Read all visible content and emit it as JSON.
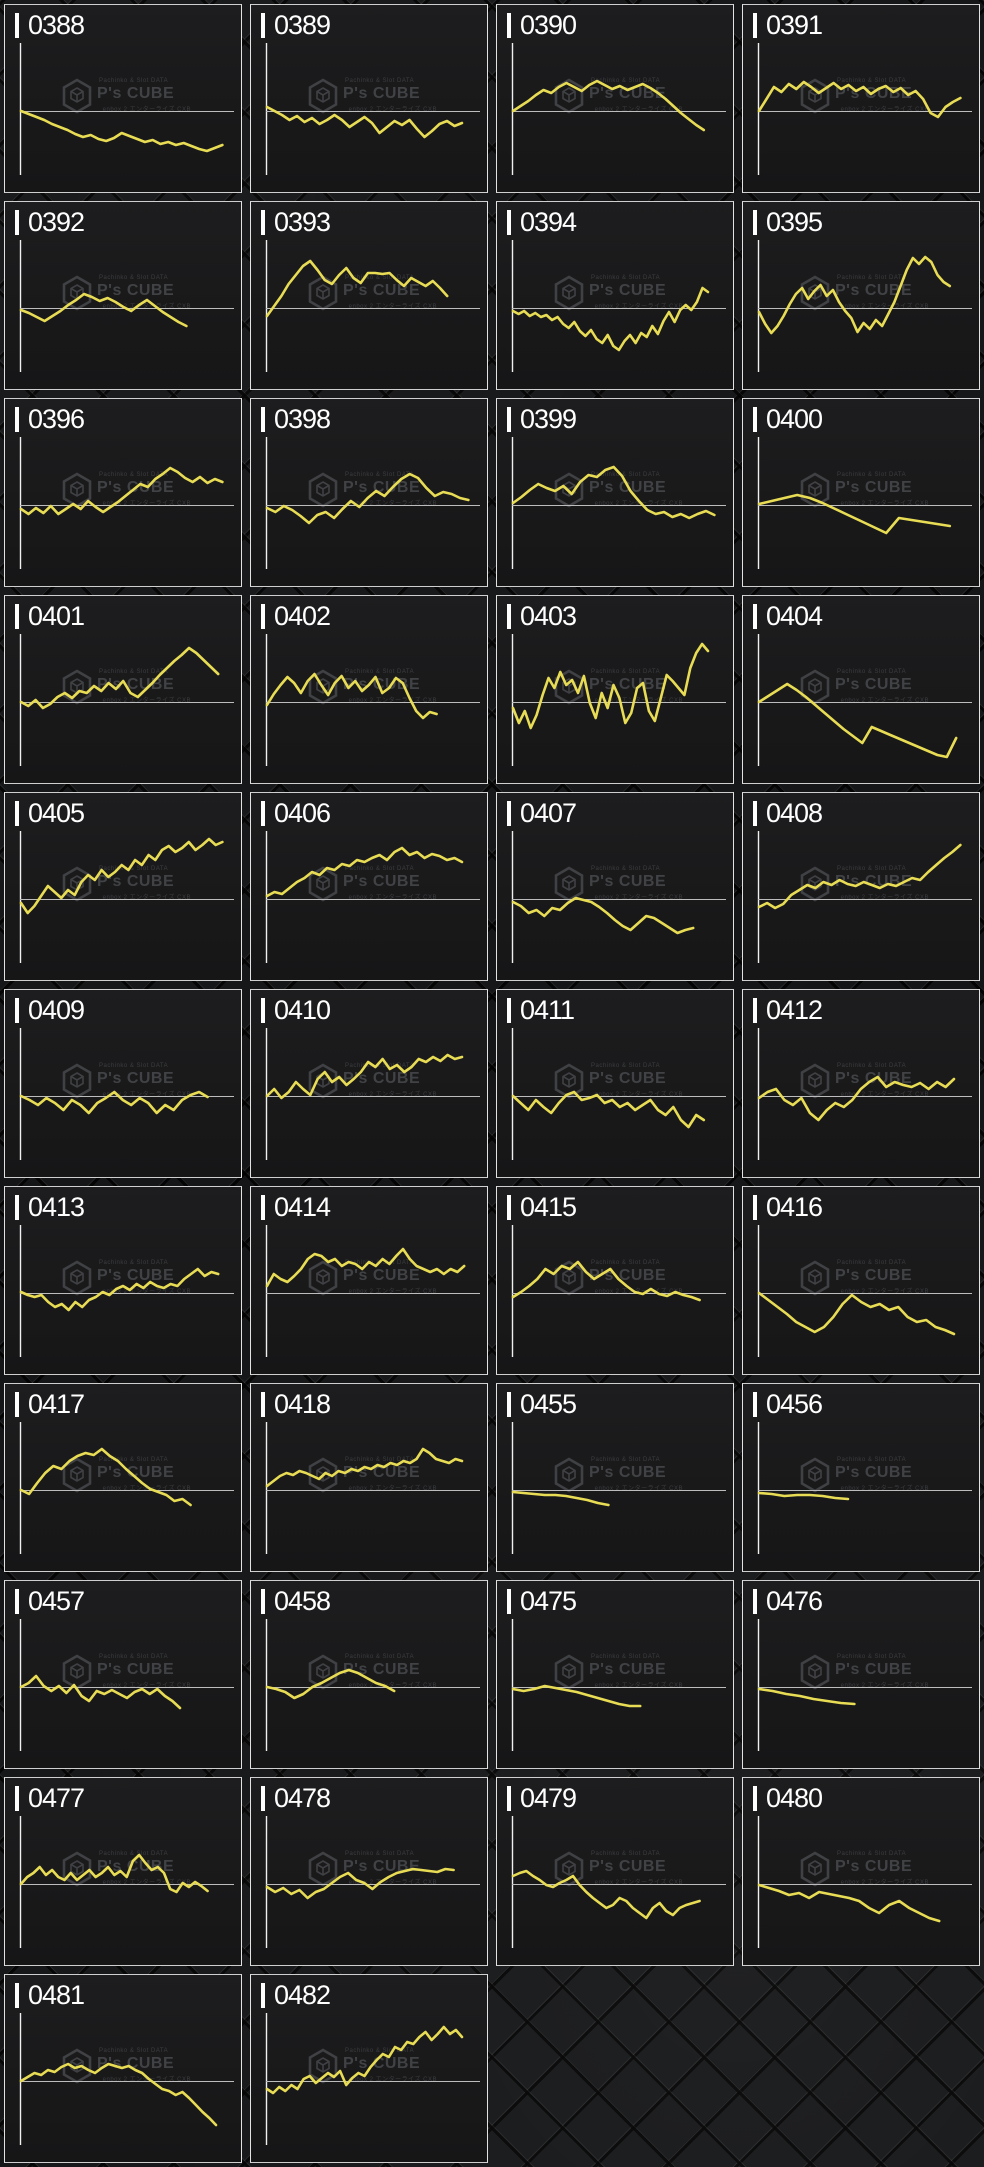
{
  "watermark": {
    "top_text": "Pachinko & Slot DATA",
    "brand": "P's CUBE",
    "bottom_text": "enbox 2 エンターライズ CXB",
    "logo": "hexagon-cube-icon"
  },
  "colors": {
    "line": "#e8dc55",
    "axis": "#f0f0f0",
    "baseline": "#bdbdbd",
    "panel_bg": "#1a1a1b",
    "panel_border": "#d6d6d6",
    "label_text": "#ffffff",
    "watermark_gray": "#404144",
    "background_base": "#141517"
  },
  "chart_data": {
    "type": "line",
    "layout": {
      "columns": 4,
      "rows": 11,
      "grid_on": false,
      "baseline": "horizontal zero line at 56% of panel height",
      "y_unit": "pixels relative to baseline (positive = above)",
      "x_axis": "left vertical axis line, no tick labels"
    },
    "panels": [
      {
        "id": "0388",
        "end": 0.95,
        "values": [
          0,
          -3,
          -6,
          -9,
          -13,
          -16,
          -19,
          -23,
          -26,
          -24,
          -28,
          -30,
          -27,
          -22,
          -25,
          -28,
          -31,
          -29,
          -33,
          -31,
          -34,
          -32,
          -35,
          -38,
          -40,
          -37,
          -34
        ]
      },
      {
        "id": "0389",
        "end": 0.92,
        "values": [
          4,
          0,
          -4,
          -9,
          -5,
          -11,
          -7,
          -13,
          -9,
          -4,
          -9,
          -16,
          -11,
          -6,
          -12,
          -22,
          -16,
          -10,
          -14,
          -9,
          -18,
          -26,
          -20,
          -13,
          -10,
          -15,
          -12
        ]
      },
      {
        "id": "0390",
        "end": 0.9,
        "values": [
          0,
          5,
          10,
          16,
          21,
          18,
          24,
          28,
          24,
          20,
          26,
          30,
          26,
          22,
          25,
          21,
          24,
          27,
          23,
          18,
          12,
          5,
          -2,
          -8,
          -14,
          -19
        ]
      },
      {
        "id": "0391",
        "end": 0.95,
        "values": [
          0,
          12,
          24,
          19,
          27,
          22,
          29,
          24,
          18,
          23,
          28,
          22,
          26,
          20,
          24,
          17,
          22,
          25,
          19,
          23,
          16,
          20,
          12,
          -2,
          -6,
          4,
          9,
          13
        ]
      },
      {
        "id": "0392",
        "end": 0.78,
        "values": [
          -2,
          -5,
          -9,
          -13,
          -8,
          -3,
          3,
          8,
          14,
          11,
          7,
          10,
          6,
          1,
          -3,
          3,
          8,
          2,
          -4,
          -9,
          -14,
          -18
        ]
      },
      {
        "id": "0393",
        "end": 0.85,
        "values": [
          -8,
          2,
          12,
          24,
          33,
          42,
          47,
          38,
          28,
          24,
          33,
          40,
          30,
          25,
          35,
          35,
          34,
          35,
          28,
          22,
          30,
          26,
          22,
          27,
          20,
          12
        ]
      },
      {
        "id": "0394",
        "end": 0.92,
        "values": [
          -3,
          -6,
          -3,
          -8,
          -5,
          -9,
          -7,
          -12,
          -9,
          -16,
          -20,
          -14,
          -23,
          -28,
          -22,
          -31,
          -35,
          -27,
          -38,
          -42,
          -33,
          -27,
          -35,
          -25,
          -29,
          -18,
          -26,
          -13,
          -4,
          -14,
          -2,
          3,
          -2,
          6,
          20,
          16
        ]
      },
      {
        "id": "0395",
        "end": 0.9,
        "values": [
          -4,
          -16,
          -25,
          -18,
          -8,
          4,
          14,
          20,
          9,
          17,
          23,
          12,
          18,
          6,
          -3,
          -10,
          -24,
          -15,
          -21,
          -12,
          -18,
          -6,
          6,
          22,
          38,
          50,
          44,
          51,
          46,
          33,
          26,
          22
        ]
      },
      {
        "id": "0396",
        "end": 0.95,
        "values": [
          -4,
          -9,
          -3,
          -8,
          -1,
          -9,
          -4,
          1,
          -4,
          4,
          -2,
          -7,
          -2,
          3,
          9,
          15,
          21,
          18,
          26,
          31,
          37,
          33,
          27,
          23,
          28,
          22,
          26,
          23
        ]
      },
      {
        "id": "0398",
        "end": 0.95,
        "values": [
          -3,
          -7,
          -1,
          -5,
          -11,
          -18,
          -10,
          -7,
          -13,
          -4,
          4,
          -2,
          7,
          14,
          9,
          18,
          26,
          31,
          27,
          17,
          9,
          13,
          11,
          7,
          5
        ]
      },
      {
        "id": "0399",
        "end": 0.95,
        "values": [
          2,
          8,
          15,
          21,
          17,
          14,
          19,
          11,
          23,
          30,
          28,
          35,
          38,
          29,
          14,
          4,
          -5,
          -9,
          -7,
          -12,
          -9,
          -13,
          -9,
          -6,
          -10
        ]
      },
      {
        "id": "0400",
        "end": 0.9,
        "values": [
          1,
          4,
          7,
          10,
          7,
          2,
          -4,
          -10,
          -16,
          -22,
          -28,
          -13,
          -15,
          -17,
          -19,
          -21
        ]
      },
      {
        "id": "0401",
        "end": 0.93,
        "values": [
          0,
          -4,
          2,
          -6,
          -2,
          5,
          9,
          4,
          11,
          9,
          16,
          11,
          19,
          13,
          21,
          9,
          5,
          12,
          19,
          27,
          34,
          41,
          47,
          54,
          49,
          42,
          35,
          28
        ]
      },
      {
        "id": "0402",
        "end": 0.8,
        "values": [
          -3,
          8,
          17,
          25,
          19,
          9,
          21,
          28,
          17,
          7,
          19,
          26,
          14,
          21,
          11,
          17,
          25,
          9,
          14,
          24,
          19,
          4,
          -9,
          -16,
          -10,
          -12
        ]
      },
      {
        "id": "0403",
        "end": 0.92,
        "values": [
          -6,
          -21,
          -9,
          -26,
          -13,
          7,
          24,
          14,
          30,
          17,
          22,
          9,
          26,
          -1,
          -16,
          9,
          -6,
          17,
          4,
          -21,
          -11,
          14,
          19,
          -9,
          -19,
          4,
          27,
          21,
          14,
          7,
          34,
          49,
          58,
          51
        ]
      },
      {
        "id": "0404",
        "end": 0.93,
        "values": [
          0,
          6,
          12,
          18,
          12,
          5,
          -3,
          -11,
          -19,
          -27,
          -34,
          -41,
          -25,
          -29,
          -33,
          -37,
          -41,
          -45,
          -49,
          -53,
          -55,
          -36
        ]
      },
      {
        "id": "0405",
        "end": 0.95,
        "values": [
          -4,
          -14,
          -7,
          3,
          13,
          7,
          1,
          9,
          4,
          17,
          24,
          19,
          29,
          22,
          27,
          34,
          29,
          39,
          34,
          44,
          39,
          49,
          53,
          47,
          51,
          57,
          49,
          54,
          60,
          54,
          57
        ]
      },
      {
        "id": "0406",
        "end": 0.92,
        "values": [
          3,
          7,
          5,
          11,
          17,
          21,
          27,
          24,
          31,
          29,
          35,
          33,
          39,
          37,
          41,
          44,
          39,
          47,
          51,
          44,
          47,
          41,
          45,
          43,
          39,
          41,
          37
        ]
      },
      {
        "id": "0407",
        "end": 0.85,
        "values": [
          -3,
          -7,
          -14,
          -11,
          -17,
          -9,
          -11,
          -4,
          1,
          -1,
          -3,
          -8,
          -14,
          -21,
          -27,
          -31,
          -24,
          -17,
          -19,
          -24,
          -29,
          -34,
          -31,
          -29
        ]
      },
      {
        "id": "0408",
        "end": 0.95,
        "values": [
          -8,
          -4,
          -9,
          -5,
          4,
          9,
          14,
          11,
          17,
          14,
          19,
          15,
          13,
          17,
          14,
          11,
          15,
          13,
          17,
          21,
          19,
          27,
          34,
          41,
          47,
          54
        ]
      },
      {
        "id": "0409",
        "end": 0.88,
        "values": [
          0,
          -4,
          -9,
          -2,
          -7,
          -14,
          -4,
          -9,
          -17,
          -7,
          -2,
          4,
          -4,
          -9,
          -2,
          -7,
          -17,
          -9,
          -14,
          -4,
          1,
          4,
          -1
        ]
      },
      {
        "id": "0410",
        "end": 0.92,
        "values": [
          0,
          7,
          -2,
          4,
          14,
          7,
          1,
          17,
          24,
          14,
          19,
          11,
          17,
          24,
          34,
          29,
          37,
          27,
          31,
          24,
          29,
          37,
          34,
          39,
          35,
          41,
          37,
          39
        ]
      },
      {
        "id": "0411",
        "end": 0.9,
        "values": [
          0,
          -7,
          -14,
          -4,
          -11,
          -17,
          -7,
          1,
          4,
          -4,
          -2,
          1,
          -7,
          -4,
          -11,
          -7,
          -14,
          -9,
          -4,
          -14,
          -19,
          -11,
          -24,
          -31,
          -19,
          -24
        ]
      },
      {
        "id": "0412",
        "end": 0.92,
        "values": [
          -2,
          4,
          7,
          -4,
          -9,
          -2,
          -17,
          -24,
          -14,
          -7,
          -11,
          -4,
          7,
          14,
          19,
          9,
          14,
          11,
          9,
          13,
          7,
          14,
          9,
          17
        ]
      },
      {
        "id": "0413",
        "end": 0.93,
        "values": [
          1,
          -2,
          -4,
          -2,
          -9,
          -14,
          -11,
          -17,
          -9,
          -14,
          -7,
          -4,
          1,
          -2,
          4,
          7,
          3,
          9,
          5,
          11,
          7,
          5,
          9,
          7,
          14,
          19,
          24,
          17,
          21,
          19
        ]
      },
      {
        "id": "0414",
        "end": 0.93,
        "values": [
          7,
          19,
          14,
          11,
          17,
          24,
          34,
          39,
          37,
          31,
          34,
          27,
          31,
          29,
          24,
          31,
          27,
          34,
          29,
          37,
          44,
          34,
          27,
          24,
          21,
          24,
          19,
          24,
          21,
          27
        ]
      },
      {
        "id": "0415",
        "end": 0.88,
        "values": [
          -4,
          1,
          7,
          14,
          24,
          19,
          27,
          24,
          31,
          21,
          14,
          19,
          24,
          14,
          7,
          1,
          -1,
          4,
          -1,
          -3,
          1,
          -2,
          -4,
          -7
        ]
      },
      {
        "id": "0416",
        "end": 0.92,
        "values": [
          0,
          -7,
          -14,
          -21,
          -29,
          -34,
          -39,
          -34,
          -24,
          -11,
          -2,
          -9,
          -14,
          -11,
          -17,
          -14,
          -24,
          -29,
          -27,
          -34,
          -37,
          -41
        ]
      },
      {
        "id": "0417",
        "end": 0.8,
        "values": [
          0,
          -4,
          7,
          17,
          24,
          21,
          29,
          34,
          37,
          35,
          41,
          34,
          29,
          21,
          14,
          7,
          1,
          -2,
          -5,
          -11,
          -9,
          -15
        ]
      },
      {
        "id": "0418",
        "end": 0.92,
        "values": [
          4,
          9,
          14,
          17,
          15,
          19,
          17,
          14,
          11,
          17,
          14,
          19,
          17,
          21,
          19,
          23,
          21,
          25,
          23,
          27,
          25,
          29,
          27,
          31,
          41,
          37,
          31,
          29,
          27,
          31,
          29
        ]
      },
      {
        "id": "0455",
        "end": 0.45,
        "values": [
          -2,
          -3,
          -4,
          -5,
          -5,
          -6,
          -8,
          -10,
          -13,
          -15
        ]
      },
      {
        "id": "0456",
        "end": 0.42,
        "values": [
          -3,
          -4,
          -6,
          -5,
          -5,
          -6,
          -8,
          -9
        ]
      },
      {
        "id": "0457",
        "end": 0.75,
        "values": [
          0,
          4,
          11,
          1,
          -4,
          1,
          -6,
          2,
          -9,
          -14,
          -4,
          -7,
          -3,
          -7,
          -11,
          -5,
          -2,
          -7,
          -2,
          -9,
          -14,
          -21
        ]
      },
      {
        "id": "0458",
        "end": 0.6,
        "values": [
          0,
          -2,
          -5,
          -11,
          -7,
          0,
          4,
          9,
          14,
          17,
          14,
          9,
          4,
          1,
          -4
        ]
      },
      {
        "id": "0475",
        "end": 0.6,
        "values": [
          -2,
          -4,
          -2,
          1,
          -1,
          -3,
          -5,
          -8,
          -11,
          -14,
          -17,
          -19,
          -19
        ]
      },
      {
        "id": "0476",
        "end": 0.45,
        "values": [
          -2,
          -4,
          -7,
          -9,
          -12,
          -14,
          -16,
          -17
        ]
      },
      {
        "id": "0477",
        "end": 0.88,
        "values": [
          0,
          7,
          11,
          17,
          9,
          14,
          7,
          4,
          11,
          4,
          9,
          14,
          7,
          11,
          17,
          9,
          13,
          7,
          23,
          29,
          21,
          14,
          17,
          11,
          -5,
          -8,
          1,
          -3,
          2,
          -2,
          -7
        ]
      },
      {
        "id": "0478",
        "end": 0.88,
        "values": [
          -3,
          -8,
          -4,
          -10,
          -6,
          -14,
          -8,
          -5,
          1,
          7,
          11,
          4,
          1,
          -5,
          2,
          7,
          11,
          13,
          15,
          14,
          13,
          12,
          15,
          14
        ]
      },
      {
        "id": "0479",
        "end": 0.88,
        "values": [
          8,
          11,
          13,
          8,
          4,
          -1,
          -3,
          1,
          4,
          8,
          -1,
          -8,
          -14,
          -19,
          -24,
          -21,
          -14,
          -17,
          -24,
          -29,
          -34,
          -24,
          -19,
          -27,
          -31,
          -24,
          -21,
          -19,
          -17
        ]
      },
      {
        "id": "0480",
        "end": 0.85,
        "values": [
          -1,
          -4,
          -7,
          -11,
          -9,
          -14,
          -8,
          -10,
          -12,
          -14,
          -17,
          -24,
          -29,
          -21,
          -17,
          -24,
          -29,
          -34,
          -37
        ]
      },
      {
        "id": "0481",
        "end": 0.92,
        "values": [
          0,
          4,
          8,
          6,
          11,
          9,
          14,
          17,
          13,
          15,
          11,
          8,
          13,
          17,
          15,
          13,
          15,
          11,
          8,
          2,
          -3,
          -8,
          -10,
          -14,
          -11,
          -17,
          -24,
          -31,
          -37,
          -44
        ]
      },
      {
        "id": "0482",
        "end": 0.92,
        "values": [
          -8,
          -12,
          -6,
          -10,
          -4,
          -8,
          2,
          5,
          -2,
          3,
          8,
          4,
          10,
          -4,
          3,
          8,
          5,
          14,
          21,
          27,
          24,
          34,
          31,
          39,
          37,
          44,
          49,
          41,
          47,
          54,
          47,
          51,
          44
        ]
      }
    ],
    "empty_cells": 2
  }
}
